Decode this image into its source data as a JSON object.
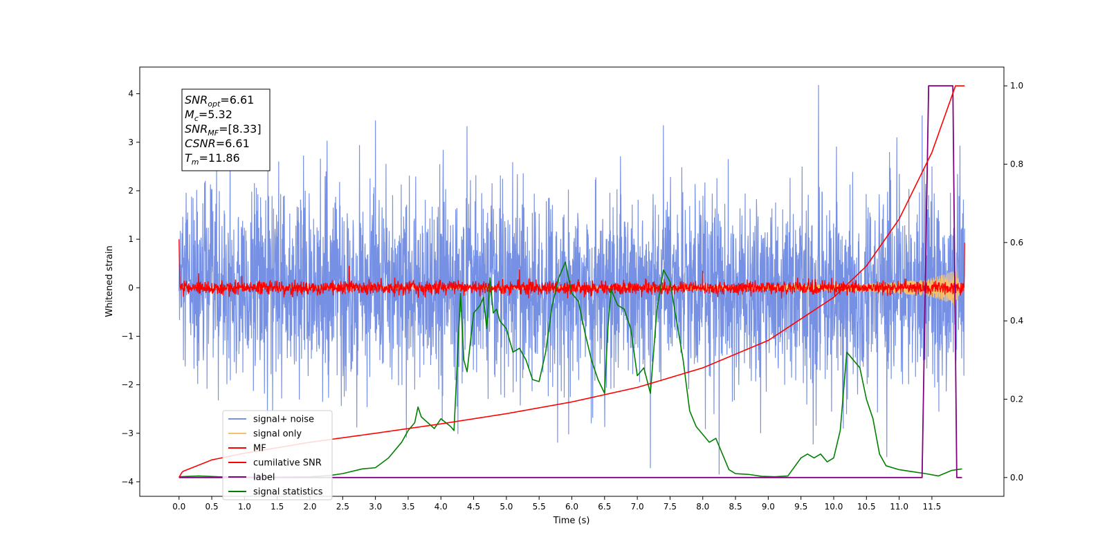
{
  "chart_data": {
    "type": "line",
    "title": "",
    "xlabel": "Time (s)",
    "ylabel": "Whitened strain",
    "y2label": "",
    "xlim": [
      -0.6,
      12.6
    ],
    "ylim": [
      -4.3,
      4.55
    ],
    "y2lim": [
      -0.048,
      1.048
    ],
    "x_ticks": [
      0.0,
      0.5,
      1.0,
      1.5,
      2.0,
      2.5,
      3.0,
      3.5,
      4.0,
      4.5,
      5.0,
      5.5,
      6.0,
      6.5,
      7.0,
      7.5,
      8.0,
      8.5,
      9.0,
      9.5,
      10.0,
      10.5,
      11.0,
      11.5
    ],
    "x_tick_labels": [
      "0.0",
      "0.5",
      "1.0",
      "1.5",
      "2.0",
      "2.5",
      "3.0",
      "3.5",
      "4.0",
      "4.5",
      "5.0",
      "5.5",
      "6.0",
      "6.5",
      "7.0",
      "7.5",
      "8.0",
      "8.5",
      "9.0",
      "9.5",
      "10.0",
      "10.5",
      "11.0",
      "11.5"
    ],
    "y_ticks": [
      4,
      3,
      2,
      1,
      0,
      -1,
      -2,
      -3,
      -4
    ],
    "y_tick_labels": [
      "4",
      "3",
      "2",
      "1",
      "0",
      "−1",
      "−2",
      "−3",
      "−4"
    ],
    "y2_ticks": [
      1.0,
      0.8,
      0.6,
      0.4,
      0.2,
      0.0
    ],
    "y2_tick_labels": [
      "1.0",
      "0.8",
      "0.6",
      "0.4",
      "0.2",
      "0.0"
    ],
    "legend_position": "lower-left",
    "grid": false,
    "annotation": [
      {
        "name": "SNR",
        "sub": "opt",
        "value": "=6.61"
      },
      {
        "name": "M",
        "sub": "c",
        "value": "=5.32"
      },
      {
        "name": "SNR",
        "sub": "MF",
        "value": "=[8.33]"
      },
      {
        "name": "CSNR",
        "sub": "",
        "value": "=6.61"
      },
      {
        "name": "T",
        "sub": "m",
        "value": "=11.86"
      }
    ],
    "series": [
      {
        "name": "signal+ noise",
        "axis": "left",
        "color": "#7690e4",
        "x_range": [
          0.0,
          12.0
        ],
        "noise_std": 1.0,
        "noise_max": 4.18,
        "noise_min": -3.85,
        "spikes": [
          [
            3.0,
            3.45
          ],
          [
            4.4,
            3.33
          ],
          [
            7.4,
            3.35
          ],
          [
            8.25,
            -3.85
          ],
          [
            9.77,
            4.18
          ],
          [
            11.35,
            3.55
          ],
          [
            11.5,
            2.5
          ],
          [
            7.2,
            -3.72
          ]
        ]
      },
      {
        "name": "signal only",
        "axis": "left",
        "color": "#f5c06b",
        "x": [
          0.0,
          6.0,
          9.0,
          10.5,
          11.0,
          11.4,
          11.6,
          11.8,
          11.86,
          11.95,
          12.0
        ],
        "amplitude": [
          0.02,
          0.03,
          0.05,
          0.08,
          0.12,
          0.17,
          0.24,
          0.33,
          0.38,
          0.03,
          0.0
        ]
      },
      {
        "name": "MF",
        "axis": "left",
        "color": "#ff0000",
        "x_range": [
          0.0,
          12.0
        ],
        "noise_std": 0.07,
        "noise_max": 0.45,
        "noise_min": -0.22,
        "start_value": 1.0,
        "end_value": 0.93
      },
      {
        "name": "cumilative SNR",
        "axis": "right",
        "color": "#ff0000",
        "x": [
          0.0,
          0.05,
          0.5,
          1.0,
          2.0,
          3.0,
          4.0,
          5.0,
          6.0,
          7.0,
          8.0,
          9.0,
          10.0,
          10.5,
          11.0,
          11.5,
          11.86,
          12.0
        ],
        "y": [
          0.0,
          0.015,
          0.045,
          0.062,
          0.09,
          0.113,
          0.137,
          0.163,
          0.193,
          0.23,
          0.28,
          0.35,
          0.46,
          0.54,
          0.66,
          0.83,
          1.0,
          1.0
        ]
      },
      {
        "name": "label",
        "axis": "right",
        "color": "#800080",
        "x": [
          0.0,
          11.35,
          11.45,
          11.82,
          11.88,
          11.96
        ],
        "y": [
          0.0,
          0.0,
          1.0,
          1.0,
          0.0,
          0.0
        ]
      },
      {
        "name": "signal statistics",
        "axis": "right",
        "color": "#008000",
        "x": [
          0.0,
          0.3,
          0.6,
          1.0,
          1.5,
          2.0,
          2.3,
          2.5,
          2.8,
          3.0,
          3.2,
          3.4,
          3.5,
          3.6,
          3.65,
          3.7,
          3.8,
          3.9,
          4.0,
          4.15,
          4.2,
          4.3,
          4.35,
          4.4,
          4.5,
          4.6,
          4.65,
          4.7,
          4.75,
          4.8,
          4.85,
          4.9,
          5.0,
          5.1,
          5.2,
          5.3,
          5.4,
          5.5,
          5.6,
          5.7,
          5.8,
          5.9,
          6.0,
          6.1,
          6.2,
          6.3,
          6.4,
          6.5,
          6.55,
          6.6,
          6.7,
          6.8,
          6.9,
          7.0,
          7.1,
          7.2,
          7.3,
          7.4,
          7.5,
          7.6,
          7.7,
          7.8,
          7.9,
          8.0,
          8.1,
          8.2,
          8.3,
          8.4,
          8.5,
          8.7,
          8.9,
          9.1,
          9.3,
          9.5,
          9.6,
          9.7,
          9.8,
          9.9,
          10.0,
          10.1,
          10.2,
          10.3,
          10.4,
          10.5,
          10.6,
          10.7,
          10.8,
          11.0,
          11.2,
          11.4,
          11.6,
          11.8,
          11.96
        ],
        "y": [
          0.002,
          0.004,
          0.002,
          0.001,
          0.001,
          0.002,
          0.005,
          0.01,
          0.022,
          0.025,
          0.05,
          0.09,
          0.12,
          0.14,
          0.18,
          0.155,
          0.14,
          0.125,
          0.15,
          0.13,
          0.12,
          0.47,
          0.3,
          0.27,
          0.42,
          0.44,
          0.46,
          0.38,
          0.51,
          0.42,
          0.43,
          0.4,
          0.38,
          0.32,
          0.33,
          0.3,
          0.25,
          0.245,
          0.32,
          0.44,
          0.51,
          0.55,
          0.47,
          0.45,
          0.37,
          0.3,
          0.25,
          0.215,
          0.38,
          0.48,
          0.44,
          0.43,
          0.38,
          0.26,
          0.28,
          0.215,
          0.43,
          0.53,
          0.5,
          0.4,
          0.3,
          0.17,
          0.13,
          0.11,
          0.09,
          0.1,
          0.06,
          0.02,
          0.01,
          0.008,
          0.003,
          0.002,
          0.004,
          0.05,
          0.06,
          0.05,
          0.06,
          0.04,
          0.05,
          0.12,
          0.32,
          0.3,
          0.28,
          0.2,
          0.15,
          0.06,
          0.03,
          0.02,
          0.015,
          0.01,
          0.004,
          0.018,
          0.022
        ]
      }
    ]
  }
}
